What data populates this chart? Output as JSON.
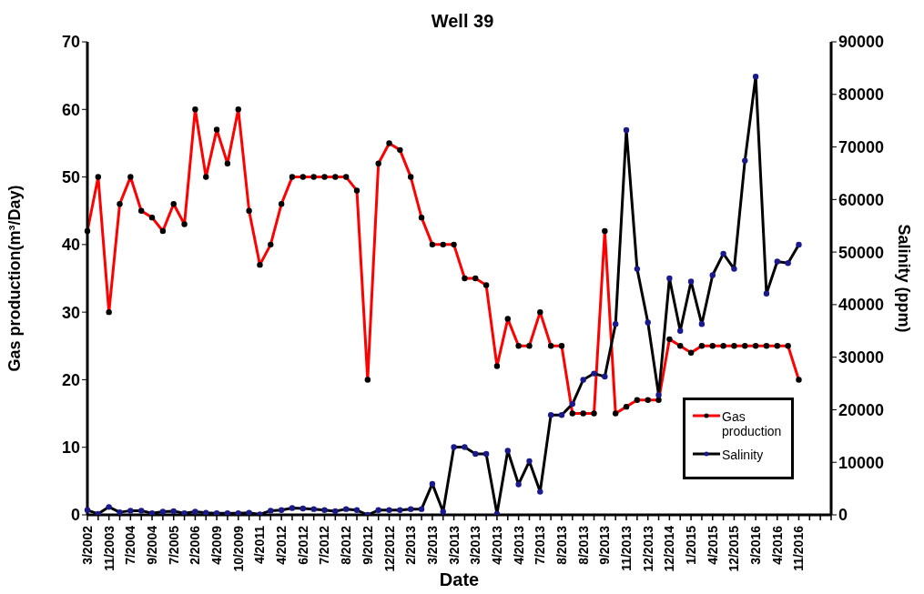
{
  "chart_data": {
    "type": "line",
    "title": "Well 39",
    "xlabel": "Date",
    "ylabel": "Gas production(m³/Day)",
    "y2label": "Salinity (ppm)",
    "categories": [
      "3/2002",
      null,
      "11/2003",
      null,
      "7/2004",
      null,
      "9/2004",
      null,
      "7/2005",
      null,
      "2/2006",
      null,
      "4/2009",
      null,
      "10/2009",
      null,
      "4/2011",
      null,
      "4/2012",
      null,
      "6/2012",
      null,
      "7/2012",
      null,
      "8/2012",
      null,
      "9/2012",
      null,
      "12/2012",
      null,
      "2/2013",
      null,
      "3/2013",
      null,
      "3/2013",
      null,
      "3/2013",
      null,
      "4/2013",
      null,
      "4/2013",
      null,
      "7/2013",
      null,
      "8/2013",
      null,
      "8/2013",
      null,
      "9/2013",
      null,
      "11/2013",
      null,
      "12/2013",
      null,
      "12/2014",
      null,
      "1/2015",
      null,
      "4/2015",
      null,
      "12/2015",
      null,
      "3/2016",
      null,
      "4/2016",
      null,
      "11/2016",
      null,
      null,
      null
    ],
    "series": [
      {
        "name": "Gas production",
        "color": "#ff0000",
        "values": [
          42,
          50,
          30,
          46,
          50,
          45,
          44,
          42,
          46,
          43,
          60,
          50,
          57,
          52,
          60,
          45,
          37,
          40,
          46,
          50,
          50,
          50,
          50,
          50,
          50,
          48,
          20,
          52,
          55,
          54,
          50,
          44,
          40,
          40,
          40,
          35,
          35,
          34,
          22,
          29,
          25,
          25,
          30,
          25,
          25,
          15,
          15,
          15,
          42,
          15,
          16,
          17,
          17,
          17,
          26,
          25,
          24,
          25,
          25,
          25,
          25,
          25,
          25,
          25,
          25,
          25,
          20,
          null,
          null,
          null
        ]
      },
      {
        "name": "Salinity",
        "color": "#000000",
        "axis": "y2",
        "values": [
          900,
          200,
          1500,
          500,
          800,
          800,
          300,
          600,
          700,
          300,
          600,
          400,
          300,
          300,
          300,
          400,
          100,
          800,
          900,
          1300,
          1200,
          1100,
          900,
          700,
          1100,
          900,
          0,
          900,
          900,
          900,
          1100,
          1100,
          5900,
          600,
          12900,
          12900,
          11600,
          11600,
          200,
          12200,
          5800,
          10200,
          4400,
          19000,
          19000,
          21100,
          25700,
          26900,
          26300,
          36300,
          73200,
          46800,
          36600,
          22800,
          45000,
          35000,
          44400,
          36300,
          45600,
          49700,
          46800,
          67400,
          83400,
          42100,
          48200,
          47900,
          51400,
          null,
          null,
          null
        ]
      }
    ],
    "ylim": [
      0,
      70
    ],
    "yticks": [
      0,
      10,
      20,
      30,
      40,
      50,
      60,
      70
    ],
    "y2lim": [
      0,
      90000
    ],
    "y2ticks": [
      0,
      10000,
      20000,
      30000,
      40000,
      50000,
      60000,
      70000,
      80000,
      90000
    ],
    "grid": false,
    "legend": "bottom right",
    "marker": "circle",
    "line_style": "solid"
  }
}
